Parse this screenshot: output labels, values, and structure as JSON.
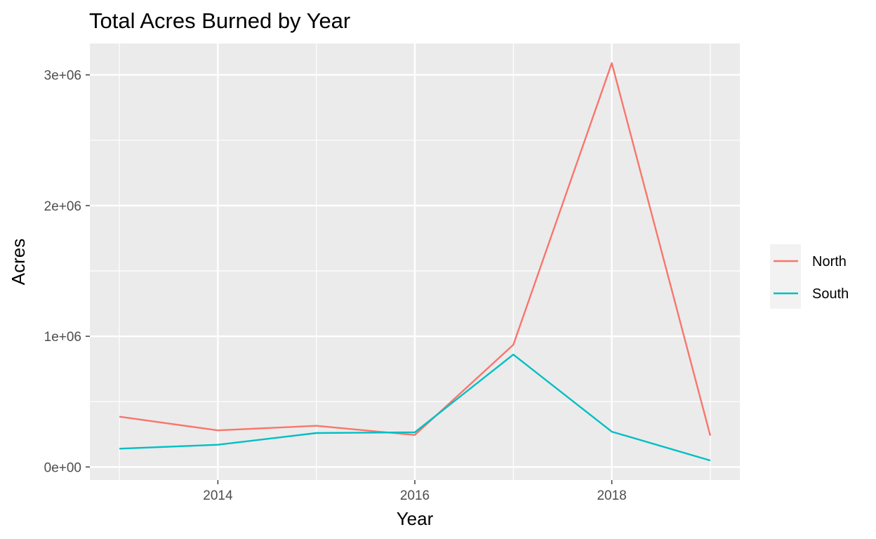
{
  "chart_data": {
    "type": "line",
    "title": "Total Acres Burned by Year",
    "xlabel": "Year",
    "ylabel": "Acres",
    "x": [
      2013,
      2014,
      2015,
      2016,
      2017,
      2018,
      2019
    ],
    "xlim": [
      2012.7,
      2019.3
    ],
    "ylim": [
      -100000,
      3240000
    ],
    "x_ticks": [
      2014,
      2016,
      2018
    ],
    "x_tick_labels": [
      "2014",
      "2016",
      "2018"
    ],
    "x_minor_ticks": [
      2013,
      2015,
      2017,
      2019
    ],
    "y_ticks": [
      0,
      1000000,
      2000000,
      3000000
    ],
    "y_tick_labels": [
      "0e+00",
      "1e+06",
      "2e+06",
      "3e+06"
    ],
    "y_minor_ticks": [
      500000,
      1500000,
      2500000
    ],
    "grid": true,
    "legend_position": "right",
    "series": [
      {
        "name": "North",
        "color": "#F8766D",
        "values": [
          385000,
          280000,
          315000,
          245000,
          935000,
          3090000,
          240000
        ]
      },
      {
        "name": "South",
        "color": "#00BFC4",
        "values": [
          140000,
          170000,
          260000,
          265000,
          860000,
          270000,
          50000
        ]
      }
    ]
  }
}
